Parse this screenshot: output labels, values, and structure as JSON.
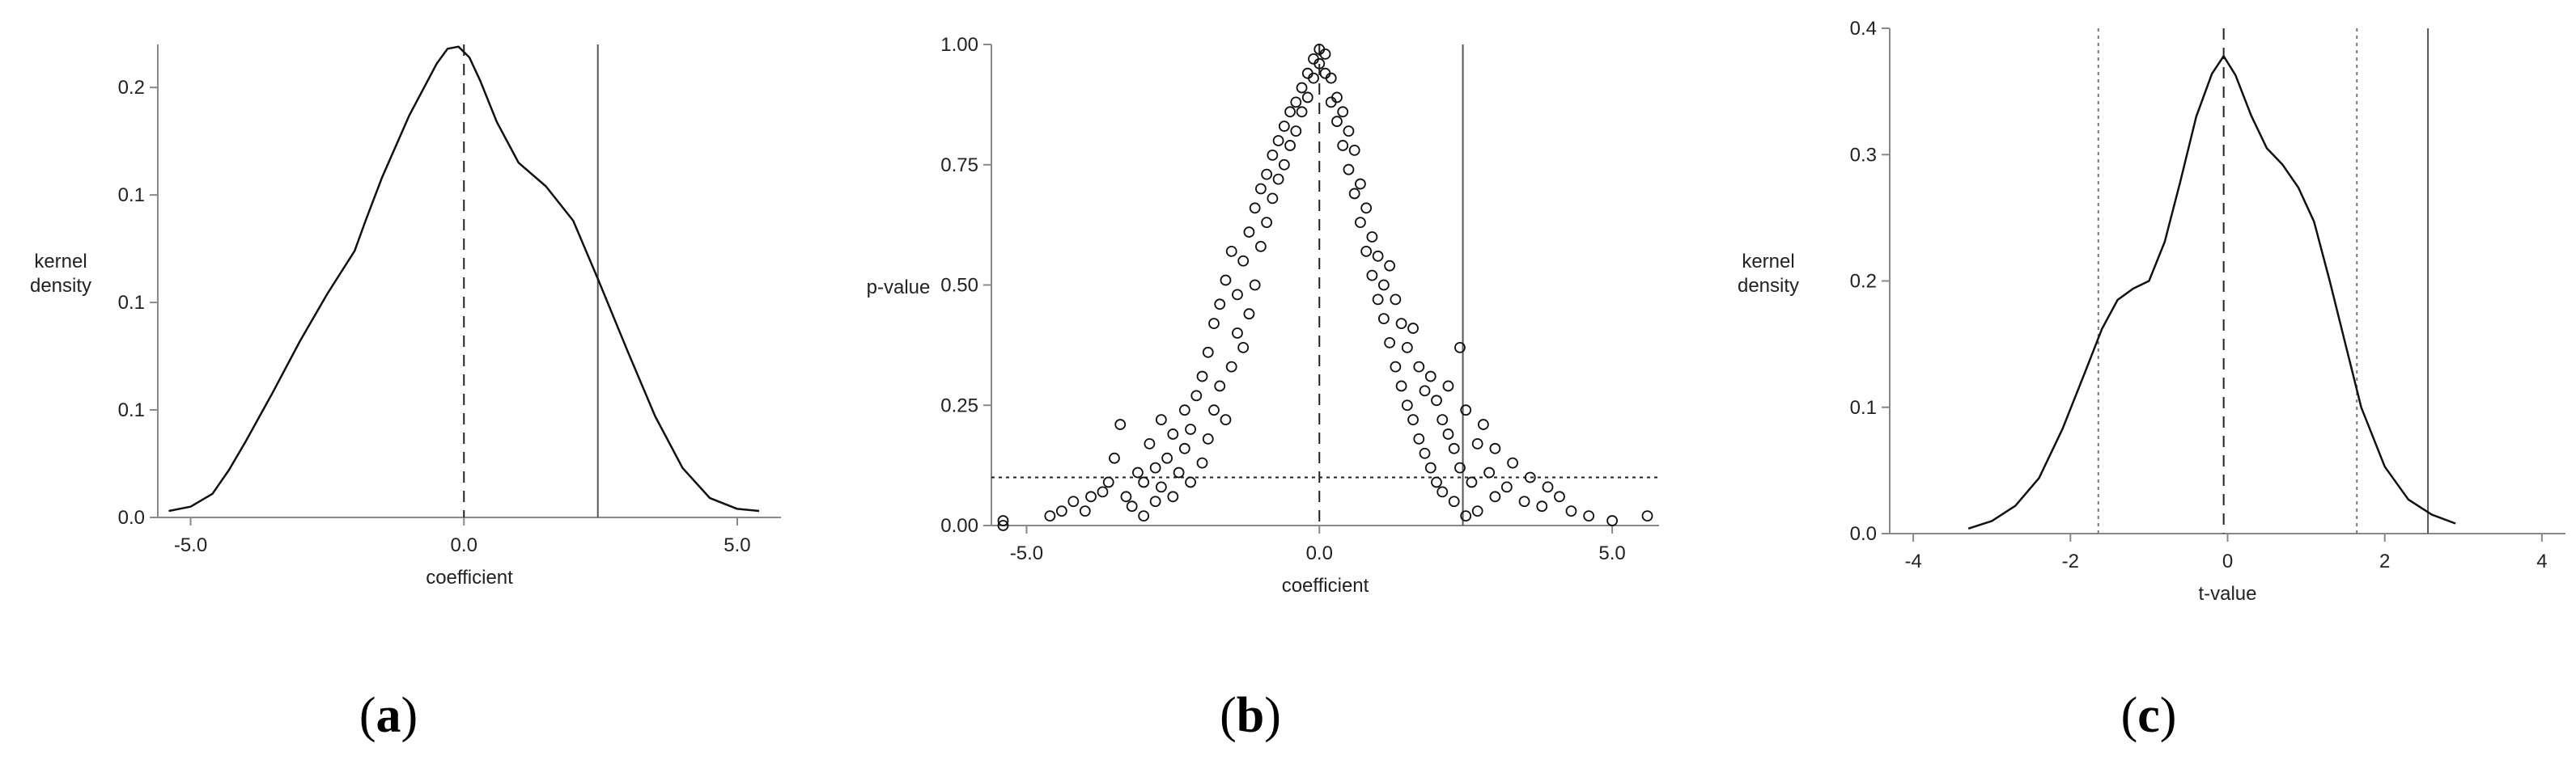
{
  "chart_data": [
    {
      "type": "line",
      "panel_label": "a",
      "xlabel": "coefficient",
      "ylabel": "kernel\ndensity",
      "xlim": [
        -5.6,
        5.8
      ],
      "ylim": [
        0,
        0.22
      ],
      "x_ticks": [
        -5.0,
        0.0,
        5.0
      ],
      "x_tick_labels": [
        "-5.0",
        "0.0",
        "5.0"
      ],
      "y_ticks": [
        0.0,
        0.05,
        0.1,
        0.15,
        0.2
      ],
      "y_tick_labels": [
        "0.0",
        "0.1",
        "0.1",
        "0.1",
        "0.2"
      ],
      "vlines": [
        {
          "x": 0.0,
          "style": "dashed"
        },
        {
          "x": 2.45,
          "style": "solid"
        }
      ],
      "series": [
        {
          "x": [
            -5.4,
            -5.0,
            -4.6,
            -4.3,
            -4.0,
            -3.5,
            -3.0,
            -2.5,
            -2.0,
            -1.8,
            -1.5,
            -1.0,
            -0.5,
            -0.3,
            -0.1,
            0.1,
            0.3,
            0.6,
            1.0,
            1.5,
            2.0,
            2.45,
            3.0,
            3.5,
            4.0,
            4.5,
            5.0,
            5.4
          ],
          "y": [
            0.003,
            0.005,
            0.011,
            0.022,
            0.035,
            0.058,
            0.082,
            0.104,
            0.124,
            0.138,
            0.158,
            0.187,
            0.211,
            0.218,
            0.219,
            0.214,
            0.203,
            0.184,
            0.165,
            0.154,
            0.138,
            0.111,
            0.077,
            0.047,
            0.023,
            0.009,
            0.004,
            0.003
          ]
        }
      ]
    },
    {
      "type": "scatter",
      "panel_label": "b",
      "xlabel": "coefficient",
      "ylabel": "p-value",
      "xlim": [
        -5.6,
        5.8
      ],
      "ylim": [
        0,
        1.0
      ],
      "x_ticks": [
        -5.0,
        0.0,
        5.0
      ],
      "x_tick_labels": [
        "-5.0",
        "0.0",
        "5.0"
      ],
      "y_ticks": [
        0.0,
        0.25,
        0.5,
        0.75,
        1.0
      ],
      "y_tick_labels": [
        "0.00",
        "0.25",
        "0.50",
        "0.75",
        "1.00"
      ],
      "vlines": [
        {
          "x": 0.0,
          "style": "dashed"
        },
        {
          "x": 2.45,
          "style": "solid"
        }
      ],
      "hlines": [
        {
          "y": 0.1,
          "style": "dotted"
        }
      ],
      "series": [
        {
          "points": [
            [
              -5.4,
              0.01
            ],
            [
              -5.4,
              0.0
            ],
            [
              -4.6,
              0.02
            ],
            [
              -4.4,
              0.03
            ],
            [
              -4.2,
              0.05
            ],
            [
              -4.0,
              0.03
            ],
            [
              -3.9,
              0.06
            ],
            [
              -3.7,
              0.07
            ],
            [
              -3.6,
              0.09
            ],
            [
              -3.5,
              0.14
            ],
            [
              -3.4,
              0.21
            ],
            [
              -3.3,
              0.06
            ],
            [
              -3.2,
              0.04
            ],
            [
              -3.1,
              0.11
            ],
            [
              -3.0,
              0.02
            ],
            [
              -3.0,
              0.09
            ],
            [
              -2.9,
              0.17
            ],
            [
              -2.8,
              0.12
            ],
            [
              -2.8,
              0.05
            ],
            [
              -2.7,
              0.08
            ],
            [
              -2.7,
              0.22
            ],
            [
              -2.6,
              0.14
            ],
            [
              -2.5,
              0.19
            ],
            [
              -2.5,
              0.06
            ],
            [
              -2.4,
              0.11
            ],
            [
              -2.3,
              0.16
            ],
            [
              -2.3,
              0.24
            ],
            [
              -2.2,
              0.09
            ],
            [
              -2.2,
              0.2
            ],
            [
              -2.1,
              0.27
            ],
            [
              -2.0,
              0.13
            ],
            [
              -2.0,
              0.31
            ],
            [
              -1.9,
              0.18
            ],
            [
              -1.9,
              0.36
            ],
            [
              -1.8,
              0.24
            ],
            [
              -1.8,
              0.42
            ],
            [
              -1.7,
              0.29
            ],
            [
              -1.7,
              0.46
            ],
            [
              -1.6,
              0.22
            ],
            [
              -1.6,
              0.51
            ],
            [
              -1.5,
              0.33
            ],
            [
              -1.5,
              0.57
            ],
            [
              -1.4,
              0.4
            ],
            [
              -1.4,
              0.48
            ],
            [
              -1.3,
              0.55
            ],
            [
              -1.3,
              0.37
            ],
            [
              -1.2,
              0.61
            ],
            [
              -1.2,
              0.44
            ],
            [
              -1.1,
              0.66
            ],
            [
              -1.1,
              0.5
            ],
            [
              -1.0,
              0.7
            ],
            [
              -1.0,
              0.58
            ],
            [
              -0.9,
              0.73
            ],
            [
              -0.9,
              0.63
            ],
            [
              -0.8,
              0.77
            ],
            [
              -0.8,
              0.68
            ],
            [
              -0.7,
              0.8
            ],
            [
              -0.7,
              0.72
            ],
            [
              -0.6,
              0.83
            ],
            [
              -0.6,
              0.75
            ],
            [
              -0.5,
              0.86
            ],
            [
              -0.5,
              0.79
            ],
            [
              -0.4,
              0.88
            ],
            [
              -0.4,
              0.82
            ],
            [
              -0.3,
              0.91
            ],
            [
              -0.3,
              0.86
            ],
            [
              -0.2,
              0.94
            ],
            [
              -0.2,
              0.89
            ],
            [
              -0.1,
              0.97
            ],
            [
              -0.1,
              0.93
            ],
            [
              0.0,
              0.99
            ],
            [
              0.0,
              0.96
            ],
            [
              0.1,
              0.98
            ],
            [
              0.1,
              0.94
            ],
            [
              0.2,
              0.93
            ],
            [
              0.2,
              0.88
            ],
            [
              0.3,
              0.89
            ],
            [
              0.3,
              0.84
            ],
            [
              0.4,
              0.86
            ],
            [
              0.4,
              0.79
            ],
            [
              0.5,
              0.82
            ],
            [
              0.5,
              0.74
            ],
            [
              0.6,
              0.78
            ],
            [
              0.6,
              0.69
            ],
            [
              0.7,
              0.71
            ],
            [
              0.7,
              0.63
            ],
            [
              0.8,
              0.66
            ],
            [
              0.8,
              0.57
            ],
            [
              0.9,
              0.6
            ],
            [
              0.9,
              0.52
            ],
            [
              1.0,
              0.56
            ],
            [
              1.0,
              0.47
            ],
            [
              1.1,
              0.5
            ],
            [
              1.1,
              0.43
            ],
            [
              1.2,
              0.54
            ],
            [
              1.2,
              0.38
            ],
            [
              1.3,
              0.47
            ],
            [
              1.3,
              0.33
            ],
            [
              1.4,
              0.42
            ],
            [
              1.4,
              0.29
            ],
            [
              1.5,
              0.37
            ],
            [
              1.5,
              0.25
            ],
            [
              1.6,
              0.41
            ],
            [
              1.6,
              0.22
            ],
            [
              1.7,
              0.33
            ],
            [
              1.7,
              0.18
            ],
            [
              1.8,
              0.28
            ],
            [
              1.8,
              0.15
            ],
            [
              1.9,
              0.31
            ],
            [
              1.9,
              0.12
            ],
            [
              2.0,
              0.26
            ],
            [
              2.0,
              0.09
            ],
            [
              2.1,
              0.22
            ],
            [
              2.1,
              0.07
            ],
            [
              2.2,
              0.19
            ],
            [
              2.2,
              0.29
            ],
            [
              2.3,
              0.16
            ],
            [
              2.3,
              0.05
            ],
            [
              2.4,
              0.37
            ],
            [
              2.4,
              0.12
            ],
            [
              2.5,
              0.02
            ],
            [
              2.5,
              0.24
            ],
            [
              2.6,
              0.09
            ],
            [
              2.7,
              0.17
            ],
            [
              2.7,
              0.03
            ],
            [
              2.8,
              0.21
            ],
            [
              2.9,
              0.11
            ],
            [
              3.0,
              0.06
            ],
            [
              3.0,
              0.16
            ],
            [
              3.2,
              0.08
            ],
            [
              3.3,
              0.13
            ],
            [
              3.5,
              0.05
            ],
            [
              3.6,
              0.1
            ],
            [
              3.8,
              0.04
            ],
            [
              3.9,
              0.08
            ],
            [
              4.1,
              0.06
            ],
            [
              4.3,
              0.03
            ],
            [
              4.6,
              0.02
            ],
            [
              5.0,
              0.01
            ],
            [
              5.6,
              0.02
            ]
          ]
        }
      ]
    },
    {
      "type": "line",
      "panel_label": "c",
      "xlabel": "t-value",
      "ylabel": "kernel\ndensity",
      "xlim": [
        -4.3,
        4.3
      ],
      "ylim": [
        0,
        0.4
      ],
      "x_ticks": [
        -4,
        -2,
        0,
        2,
        4
      ],
      "x_tick_labels": [
        "-4",
        "-2",
        "0",
        "2",
        "4"
      ],
      "y_ticks": [
        0.0,
        0.1,
        0.2,
        0.3,
        0.4
      ],
      "y_tick_labels": [
        "0.0",
        "0.1",
        "0.2",
        "0.3",
        "0.4"
      ],
      "vlines": [
        {
          "x": -1.645,
          "style": "dotted"
        },
        {
          "x": 1.645,
          "style": "dotted"
        },
        {
          "x": -0.05,
          "style": "dashed"
        },
        {
          "x": 2.55,
          "style": "solid"
        }
      ],
      "series": [
        {
          "x": [
            -3.3,
            -3.0,
            -2.7,
            -2.4,
            -2.1,
            -1.8,
            -1.6,
            -1.4,
            -1.2,
            -1.0,
            -0.8,
            -0.6,
            -0.4,
            -0.2,
            -0.05,
            0.1,
            0.3,
            0.5,
            0.7,
            0.9,
            1.1,
            1.3,
            1.5,
            1.7,
            2.0,
            2.3,
            2.6,
            2.9
          ],
          "y": [
            0.004,
            0.01,
            0.022,
            0.044,
            0.083,
            0.13,
            0.162,
            0.185,
            0.194,
            0.2,
            0.231,
            0.279,
            0.33,
            0.364,
            0.378,
            0.363,
            0.331,
            0.305,
            0.292,
            0.274,
            0.247,
            0.2,
            0.15,
            0.1,
            0.053,
            0.027,
            0.015,
            0.008
          ]
        }
      ]
    }
  ]
}
